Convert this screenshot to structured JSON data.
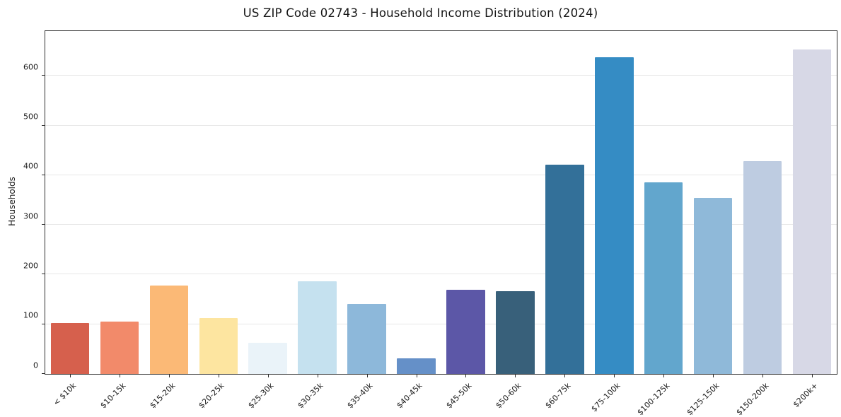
{
  "chart_data": {
    "type": "bar",
    "title": "US ZIP Code 02743 - Household Income Distribution (2024)",
    "xlabel": "",
    "ylabel": "Households",
    "categories": [
      "< $10k",
      "$10-15k",
      "$15-20k",
      "$20-25k",
      "$25-30k",
      "$30-35k",
      "$35-40k",
      "$40-45k",
      "$45-50k",
      "$50-60k",
      "$60-75k",
      "$75-100k",
      "$100-125k",
      "$125-150k",
      "$150-200k",
      "$200k+"
    ],
    "values": [
      103,
      105,
      178,
      113,
      62,
      187,
      141,
      32,
      170,
      167,
      421,
      638,
      385,
      354,
      428,
      653
    ],
    "bar_colors": [
      "#d6604d",
      "#f28a6a",
      "#fbb976",
      "#fde5a0",
      "#eaf3f9",
      "#c5e1ef",
      "#8db8da",
      "#6590c8",
      "#5c57a7",
      "#38607a",
      "#337099",
      "#358cc4",
      "#62a6cd",
      "#8fb9d9",
      "#becce1",
      "#d7d8e6"
    ],
    "ylim": [
      0,
      690
    ],
    "yticks": [
      0,
      100,
      200,
      300,
      400,
      500,
      600
    ],
    "grid": "horizontal",
    "legend": "none",
    "background_color": "#ffffff",
    "spine_color": "#2e2e2e",
    "gridline_color": "#e7e7e7"
  }
}
